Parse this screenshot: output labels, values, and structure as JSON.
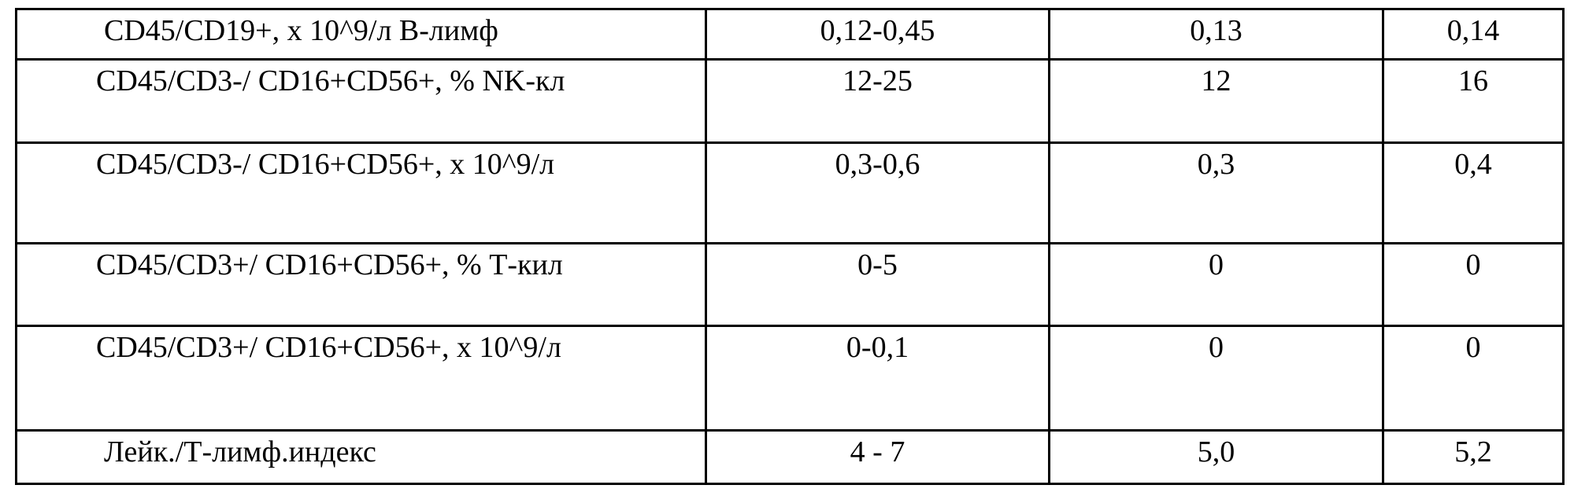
{
  "table": {
    "rows": [
      [
        "CD45/CD19+, х 10^9/л В-лимф",
        "0,12-0,45",
        "0,13",
        "0,14"
      ],
      [
        "CD45/CD3-/ CD16+CD56+, % NK-кл",
        "12-25",
        "12",
        "16"
      ],
      [
        "CD45/CD3-/ CD16+CD56+, х 10^9/л",
        "0,3-0,6",
        "0,3",
        "0,4"
      ],
      [
        "CD45/CD3+/ CD16+CD56+, % Т-кил",
        "0-5",
        "0",
        "0"
      ],
      [
        "CD45/CD3+/ CD16+CD56+, х 10^9/л",
        "0-0,1",
        "0",
        "0"
      ],
      [
        "Лейк./Т-лимф.индекс",
        "4 - 7",
        "5,0",
        "5,2"
      ]
    ]
  }
}
